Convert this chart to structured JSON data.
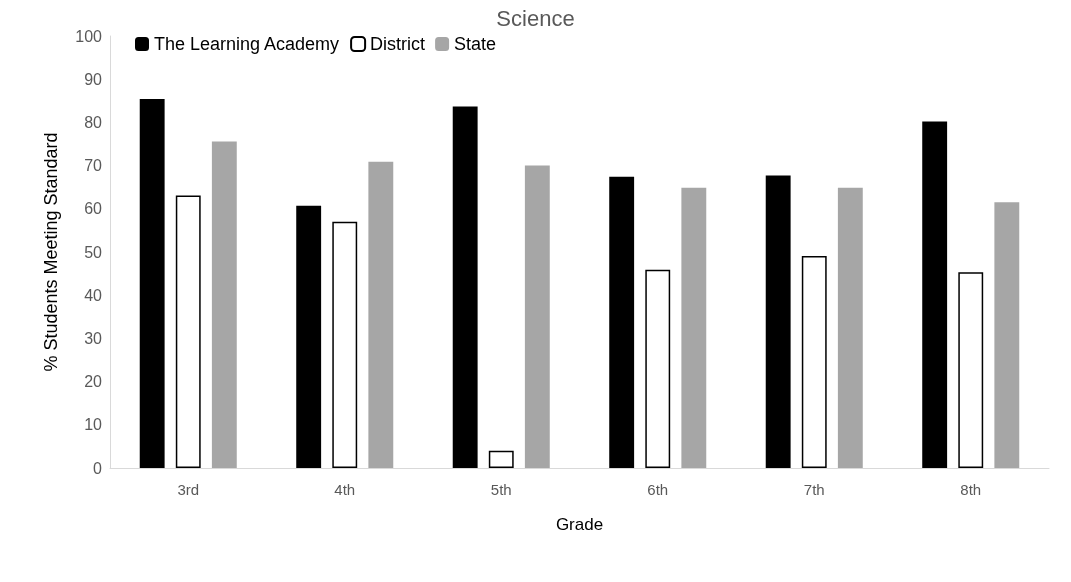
{
  "chart_data": {
    "type": "bar",
    "title": "Science",
    "xlabel": "Grade",
    "ylabel": "% Students Meeting Standard",
    "categories": [
      "3rd",
      "4th",
      "5th",
      "6th",
      "7th",
      "8th"
    ],
    "series": [
      {
        "name": "The Learning Academy",
        "color": "#000000",
        "values": [
          85.4,
          60.7,
          83.7,
          67.4,
          67.7,
          80.2
        ]
      },
      {
        "name": "District",
        "color": "#ffffff",
        "values": [
          63.1,
          57.0,
          4.0,
          45.9,
          49.1,
          45.3
        ]
      },
      {
        "name": "State",
        "color": "#a6a6a6",
        "values": [
          75.6,
          70.9,
          70.0,
          64.9,
          64.9,
          61.5
        ]
      }
    ],
    "ylim": [
      0,
      100
    ],
    "yticks": [
      0,
      10,
      20,
      30,
      40,
      50,
      60,
      70,
      80,
      90,
      100
    ],
    "grid": false,
    "legend": "top left"
  }
}
